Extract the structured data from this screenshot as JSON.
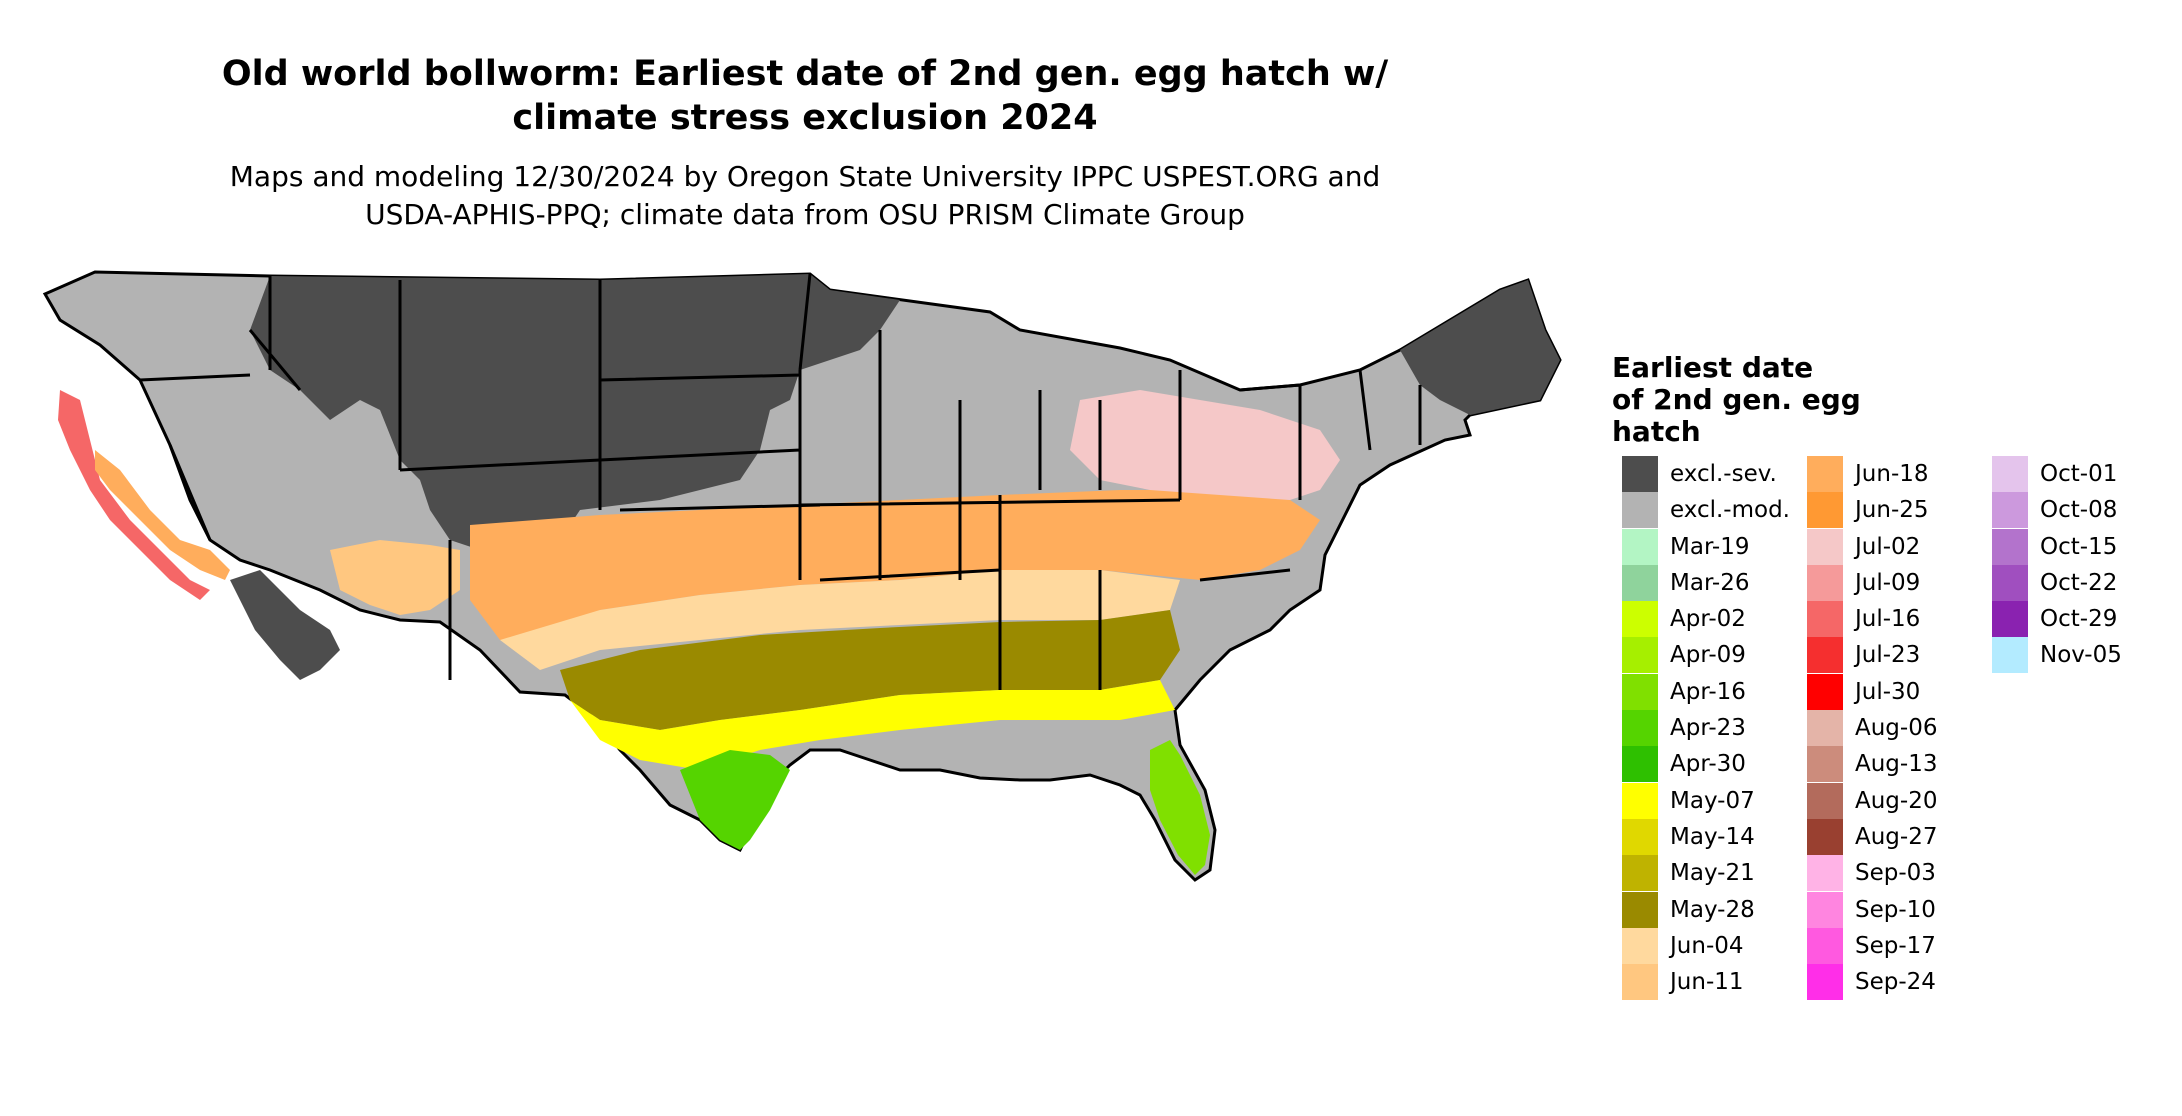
{
  "title_line1": "Old world bollworm: Earliest date of 2nd gen. egg hatch w/",
  "title_line2": "climate stress exclusion 2024",
  "subtitle_line1": "Maps and modeling 12/30/2024 by Oregon State University IPPC USPEST.ORG and",
  "subtitle_line2": "USDA-APHIS-PPQ; climate data from OSU PRISM Climate Group",
  "legend": {
    "title_line1": "Earliest date",
    "title_line2": "of 2nd gen. egg",
    "title_line3": "hatch",
    "items": [
      {
        "label": "excl.-sev.",
        "color": "#4d4d4d"
      },
      {
        "label": "excl.-mod.",
        "color": "#b3b3b3"
      },
      {
        "label": "Mar-19",
        "color": "#b3f5c4"
      },
      {
        "label": "Mar-26",
        "color": "#8fd39c"
      },
      {
        "label": "Apr-02",
        "color": "#ccff00"
      },
      {
        "label": "Apr-09",
        "color": "#a6ef00"
      },
      {
        "label": "Apr-16",
        "color": "#80e000"
      },
      {
        "label": "Apr-23",
        "color": "#55d400"
      },
      {
        "label": "Apr-30",
        "color": "#2ec000"
      },
      {
        "label": "May-07",
        "color": "#ffff00"
      },
      {
        "label": "May-14",
        "color": "#e0d800"
      },
      {
        "label": "May-21",
        "color": "#bfb300"
      },
      {
        "label": "May-28",
        "color": "#9a8a00"
      },
      {
        "label": "Jun-04",
        "color": "#ffd99e"
      },
      {
        "label": "Jun-11",
        "color": "#ffc780"
      },
      {
        "label": "Jun-18",
        "color": "#ffad5c"
      },
      {
        "label": "Jun-25",
        "color": "#ff9933"
      },
      {
        "label": "Jul-02",
        "color": "#f5c8c8"
      },
      {
        "label": "Jul-09",
        "color": "#f59a9a"
      },
      {
        "label": "Jul-16",
        "color": "#f56767"
      },
      {
        "label": "Jul-23",
        "color": "#f52f2f"
      },
      {
        "label": "Jul-30",
        "color": "#ff0000"
      },
      {
        "label": "Aug-06",
        "color": "#e4b4a8"
      },
      {
        "label": "Aug-13",
        "color": "#cc8c7c"
      },
      {
        "label": "Aug-20",
        "color": "#b36b5c"
      },
      {
        "label": "Aug-27",
        "color": "#994030"
      },
      {
        "label": "Sep-03",
        "color": "#ffb3e6"
      },
      {
        "label": "Sep-10",
        "color": "#ff85e0"
      },
      {
        "label": "Sep-17",
        "color": "#ff59e0"
      },
      {
        "label": "Sep-24",
        "color": "#ff2ee8"
      },
      {
        "label": "Oct-01",
        "color": "#e4c4ec"
      },
      {
        "label": "Oct-08",
        "color": "#cc99dd"
      },
      {
        "label": "Oct-15",
        "color": "#b373cc"
      },
      {
        "label": "Oct-22",
        "color": "#a04fbf"
      },
      {
        "label": "Oct-29",
        "color": "#8a22b0"
      },
      {
        "label": "Nov-05",
        "color": "#b3ebff"
      }
    ]
  }
}
